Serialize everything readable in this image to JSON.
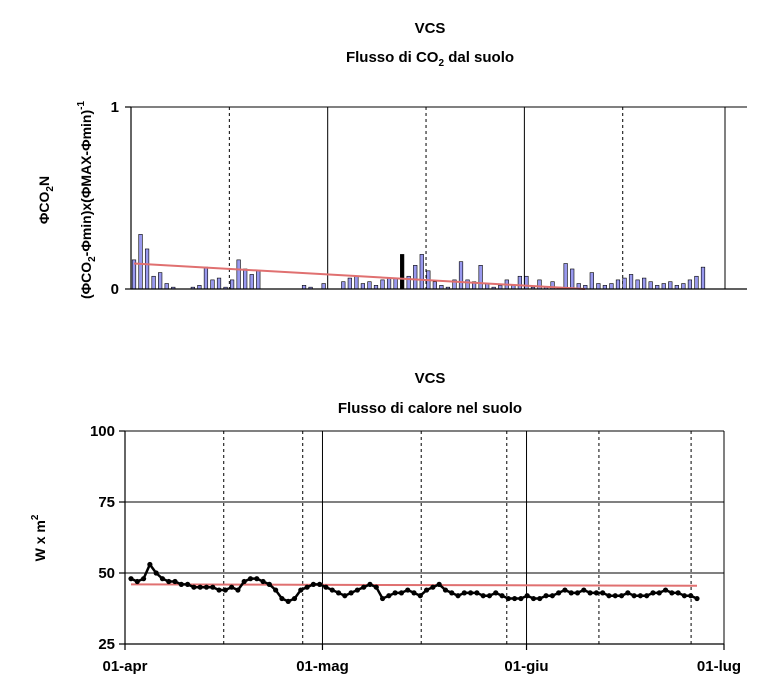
{
  "chart_data": [
    {
      "type": "bar",
      "title": "VCS",
      "subtitle_parts": [
        "Flusso di CO",
        "2",
        " dal suolo"
      ],
      "ylabel_line1_parts": [
        "ΦCO",
        "2",
        "N"
      ],
      "ylabel_line2_parts": [
        "(ΦCO",
        "2",
        "-Φmin)x(ΦMAX-Φmin)",
        "-1"
      ],
      "ylim": [
        0,
        1
      ],
      "y_ticks": [
        0,
        1
      ],
      "x_range_days": [
        0,
        151
      ],
      "x_gridlines_solid_day": [
        50,
        100,
        151
      ],
      "x_gridlines_dashed_day": [
        25,
        75,
        125
      ],
      "bar_color": "#9999ee",
      "bar_values": [
        0.16,
        0.3,
        0.22,
        0.07,
        0.09,
        0.03,
        0.01,
        0,
        0,
        0.01,
        0.02,
        0.12,
        0.05,
        0.06,
        0.01,
        0.05,
        0.16,
        0.11,
        0.08,
        0.1,
        0,
        0,
        0,
        0,
        0,
        0,
        0.02,
        0.01,
        0,
        0.03,
        0,
        0,
        0.04,
        0.06,
        0.07,
        0.03,
        0.04,
        0.02,
        0.05,
        0.06,
        0.06,
        0.19,
        0.07,
        0.13,
        0.19,
        0.1,
        0.04,
        0.02,
        0.01,
        0.05,
        0.15,
        0.05,
        0.04,
        0.13,
        0.03,
        0.01,
        0.02,
        0.05,
        0.02,
        0.07,
        0.07,
        0.01,
        0.05,
        0.01,
        0.04,
        0.01,
        0.14,
        0.11,
        0.03,
        0.02,
        0.09,
        0.03,
        0.02,
        0.03,
        0.05,
        0.06,
        0.08,
        0.05,
        0.06,
        0.04,
        0.02,
        0.03,
        0.04,
        0.02,
        0.03,
        0.05,
        0.07,
        0.12
      ],
      "bar_dark_indices": [
        41
      ],
      "trend_color": "#e07070",
      "trend": [
        0.14,
        0.0
      ]
    },
    {
      "type": "line",
      "title": "VCS",
      "subtitle": "Flusso di calore nel suolo",
      "ylabel_parts": [
        "W x m",
        "2"
      ],
      "ylim": [
        25,
        100
      ],
      "y_ticks": [
        25,
        50,
        75,
        100
      ],
      "x_range_days": [
        0,
        91
      ],
      "x_tick_labels": [
        "01-apr",
        "01-mag",
        "01-giu",
        "01-lug"
      ],
      "x_tick_days": [
        0,
        30,
        61,
        91
      ],
      "x_gridlines_solid_day": [
        30,
        61
      ],
      "x_gridlines_dashed_day": [
        15,
        27,
        45,
        58,
        72,
        86
      ],
      "series_color": "#000000",
      "values": [
        48,
        47,
        48,
        53,
        50,
        48,
        47,
        47,
        46,
        46,
        45,
        45,
        45,
        45,
        44,
        44,
        45,
        44,
        47,
        48,
        48,
        47,
        46,
        44,
        41,
        40,
        41,
        44,
        45,
        46,
        46,
        45,
        44,
        43,
        42,
        43,
        44,
        45,
        46,
        45,
        41,
        42,
        43,
        43,
        44,
        43,
        42,
        44,
        45,
        46,
        44,
        43,
        42,
        43,
        43,
        43,
        42,
        42,
        43,
        42,
        41,
        41,
        41,
        42,
        41,
        41,
        42,
        42,
        43,
        44,
        43,
        43,
        44,
        43,
        43,
        43,
        42,
        42,
        42,
        43,
        42,
        42,
        42,
        43,
        43,
        44,
        43,
        43,
        42,
        42,
        41
      ],
      "trend_color": "#e07070",
      "trend": [
        46,
        45.5
      ]
    }
  ]
}
